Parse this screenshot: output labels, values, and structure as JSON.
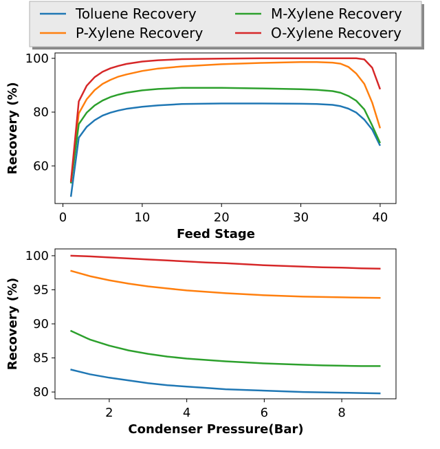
{
  "legend": {
    "entries": [
      {
        "label": "Toluene Recovery",
        "color": "#1f77b4"
      },
      {
        "label": "P-Xylene Recovery",
        "color": "#ff7f0e"
      },
      {
        "label": "M-Xylene Recovery",
        "color": "#2ca02c"
      },
      {
        "label": "O-Xylene Recovery",
        "color": "#d62728"
      }
    ],
    "placement": "top-center, above plots, two columns"
  },
  "chart_data": [
    {
      "type": "line",
      "xlabel": "Feed Stage",
      "ylabel": "Recovery (%)",
      "xlim": [
        -1,
        42
      ],
      "ylim": [
        46,
        102
      ],
      "xticks": [
        0,
        10,
        20,
        30,
        40
      ],
      "yticks": [
        60,
        80,
        100
      ],
      "grid": false,
      "x": [
        1,
        2,
        3,
        4,
        5,
        6,
        7,
        8,
        10,
        12,
        15,
        20,
        25,
        30,
        32,
        34,
        35,
        36,
        37,
        38,
        39,
        40
      ],
      "series": [
        {
          "name": "Toluene Recovery",
          "color": "#1f77b4",
          "values": [
            48.5,
            70.5,
            74.5,
            77.0,
            78.7,
            79.8,
            80.6,
            81.2,
            82.0,
            82.5,
            83.0,
            83.2,
            83.2,
            83.1,
            83.0,
            82.7,
            82.2,
            81.3,
            79.8,
            77.2,
            73.5,
            67.5
          ]
        },
        {
          "name": "P-Xylene Recovery",
          "color": "#ff7f0e",
          "values": [
            54.0,
            79.5,
            84.8,
            88.2,
            90.5,
            92.0,
            93.2,
            94.0,
            95.3,
            96.2,
            97.0,
            97.8,
            98.3,
            98.6,
            98.6,
            98.4,
            98.0,
            96.8,
            94.3,
            90.5,
            83.5,
            74.0
          ]
        },
        {
          "name": "M-Xylene Recovery",
          "color": "#2ca02c",
          "values": [
            53.5,
            75.5,
            79.8,
            82.5,
            84.3,
            85.6,
            86.5,
            87.2,
            88.1,
            88.6,
            89.0,
            89.0,
            88.8,
            88.5,
            88.3,
            87.8,
            87.2,
            86.0,
            84.2,
            81.0,
            75.0,
            68.5
          ]
        },
        {
          "name": "O-Xylene Recovery",
          "color": "#d62728",
          "values": [
            54.0,
            84.0,
            89.8,
            93.0,
            95.0,
            96.3,
            97.2,
            97.9,
            98.8,
            99.3,
            99.7,
            99.9,
            100.0,
            100.0,
            100.0,
            100.0,
            100.0,
            100.0,
            100.0,
            99.6,
            96.5,
            88.5
          ]
        }
      ]
    },
    {
      "type": "line",
      "xlabel": "Condenser Pressure(Bar)",
      "ylabel": "Recovery (%)",
      "xlim": [
        0.6,
        9.4
      ],
      "ylim": [
        79,
        101
      ],
      "xticks": [
        2,
        4,
        6,
        8
      ],
      "yticks": [
        80,
        85,
        90,
        95,
        100
      ],
      "grid": false,
      "x": [
        1,
        1.5,
        2,
        2.5,
        3,
        3.5,
        4,
        4.5,
        5,
        5.5,
        6,
        6.5,
        7,
        7.5,
        8,
        8.5,
        9
      ],
      "series": [
        {
          "name": "Toluene Recovery",
          "color": "#1f77b4",
          "values": [
            83.3,
            82.6,
            82.1,
            81.7,
            81.3,
            81.0,
            80.8,
            80.6,
            80.4,
            80.3,
            80.2,
            80.1,
            80.0,
            79.95,
            79.9,
            79.85,
            79.8
          ]
        },
        {
          "name": "P-Xylene Recovery",
          "color": "#ff7f0e",
          "values": [
            97.8,
            97.0,
            96.4,
            95.9,
            95.5,
            95.2,
            94.9,
            94.7,
            94.5,
            94.35,
            94.2,
            94.1,
            94.0,
            93.95,
            93.9,
            93.85,
            93.8
          ]
        },
        {
          "name": "M-Xylene Recovery",
          "color": "#2ca02c",
          "values": [
            89.0,
            87.7,
            86.8,
            86.1,
            85.6,
            85.2,
            84.9,
            84.7,
            84.5,
            84.35,
            84.2,
            84.1,
            84.0,
            83.9,
            83.85,
            83.8,
            83.8
          ]
        },
        {
          "name": "O-Xylene Recovery",
          "color": "#d62728",
          "values": [
            100.0,
            99.9,
            99.75,
            99.6,
            99.45,
            99.3,
            99.15,
            99.0,
            98.9,
            98.75,
            98.6,
            98.5,
            98.4,
            98.3,
            98.25,
            98.15,
            98.1
          ]
        }
      ]
    }
  ]
}
